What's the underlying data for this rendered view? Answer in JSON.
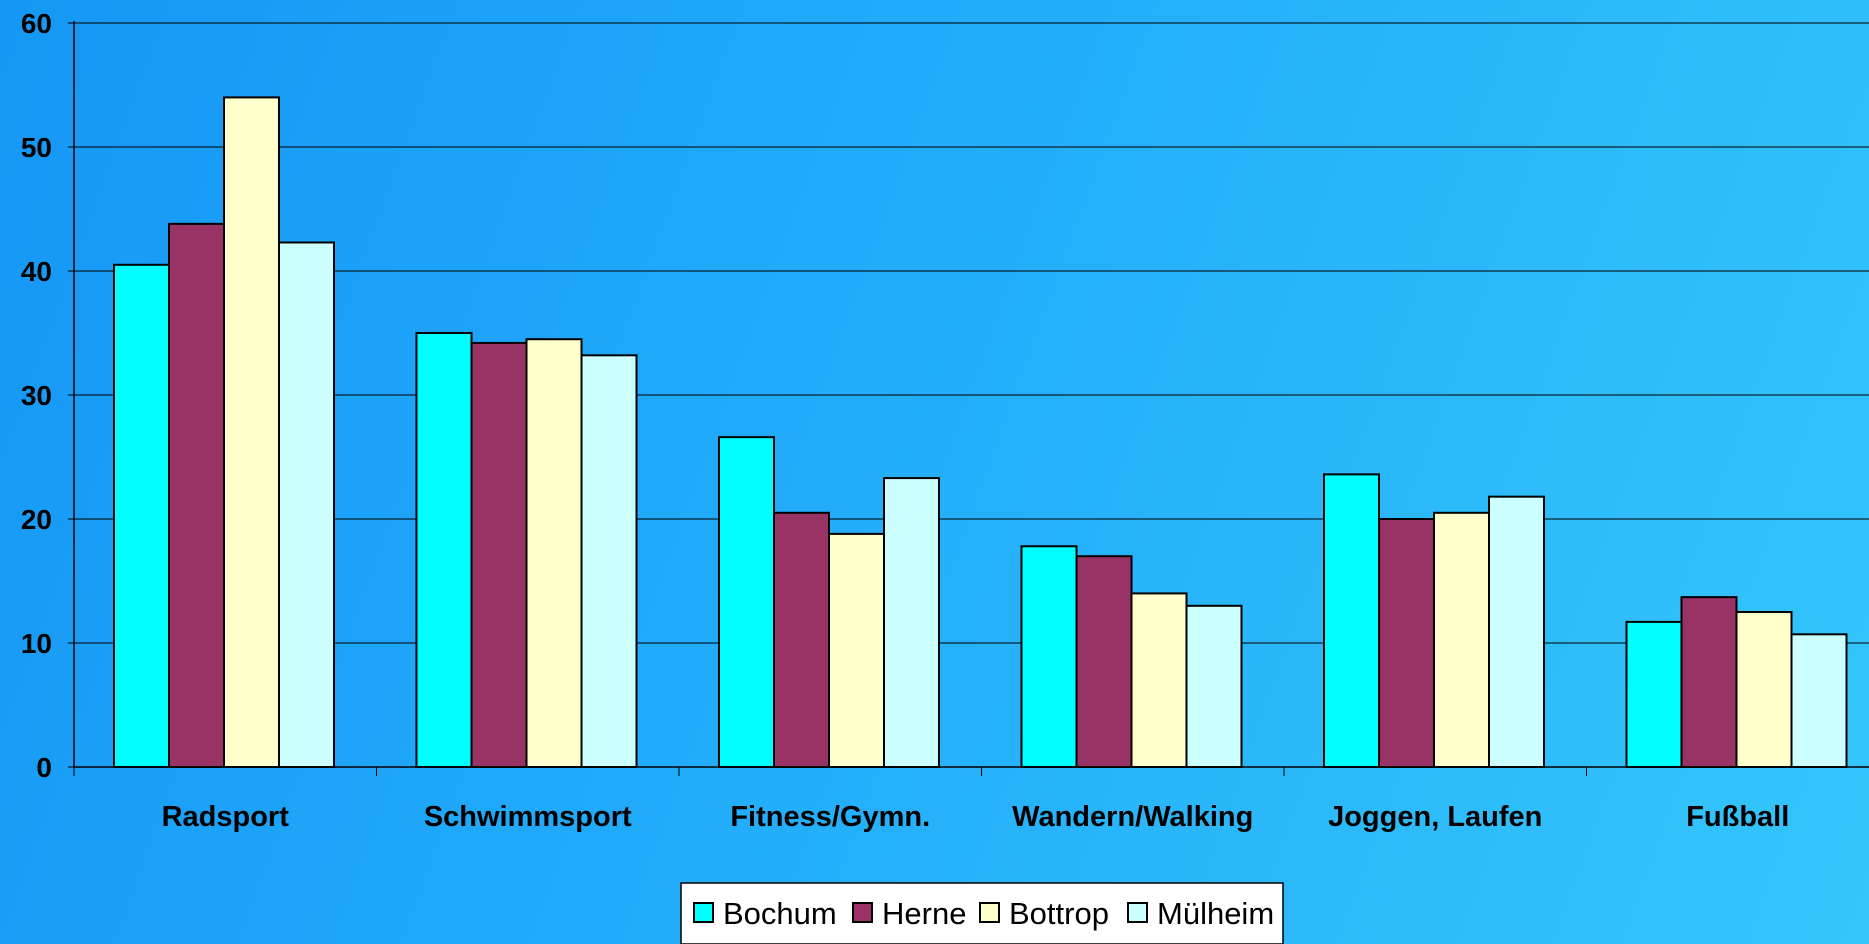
{
  "chart_data": {
    "type": "bar",
    "title": "",
    "xlabel": "",
    "ylabel": "",
    "ylim": [
      0,
      60
    ],
    "yticks": [
      0,
      10,
      20,
      30,
      40,
      50,
      60
    ],
    "grid": true,
    "legend_position": "bottom-center",
    "categories": [
      "Radsport",
      "Schwimmsport",
      "Fitness/Gymn.",
      "Wandern/Walking",
      "Joggen, Laufen",
      "Fußball"
    ],
    "series": [
      {
        "name": "Bochum",
        "color": "#00ffff",
        "values": [
          40.5,
          35.0,
          26.6,
          17.8,
          23.6,
          11.7
        ]
      },
      {
        "name": "Herne",
        "color": "#993366",
        "values": [
          43.8,
          34.2,
          20.5,
          17.0,
          20.0,
          13.7
        ]
      },
      {
        "name": "Bottrop",
        "color": "#ffffcc",
        "values": [
          54.0,
          34.5,
          18.8,
          14.0,
          20.5,
          12.5
        ]
      },
      {
        "name": "Mülheim",
        "color": "#ccffff",
        "values": [
          42.3,
          33.2,
          23.3,
          13.0,
          21.8,
          10.7
        ]
      }
    ]
  }
}
